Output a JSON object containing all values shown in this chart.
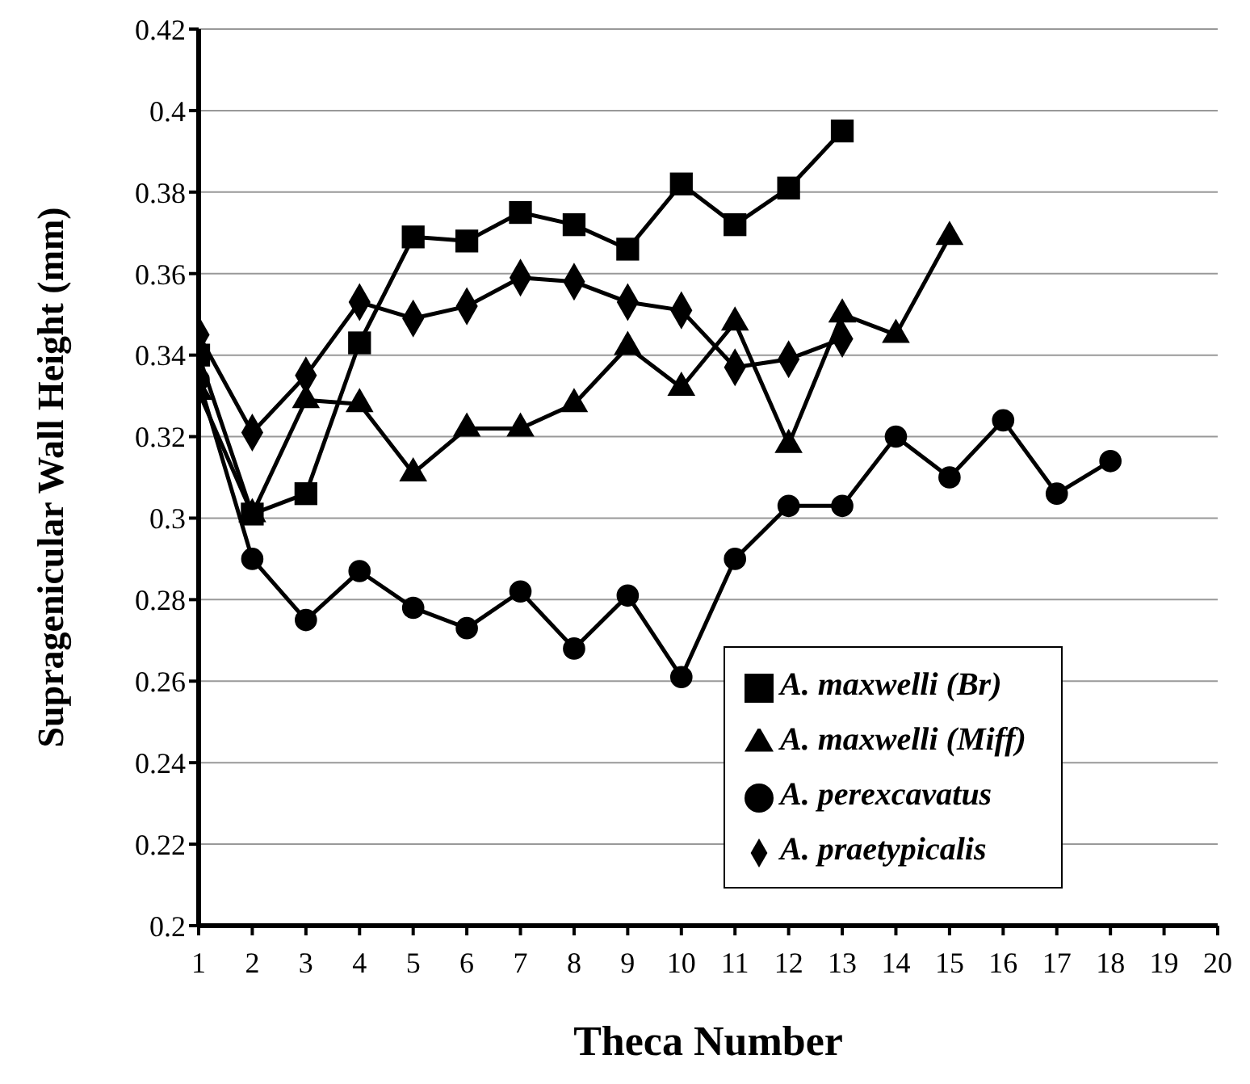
{
  "chart_data": {
    "type": "line",
    "xlabel": "Theca Number",
    "ylabel": "Supragenicular Wall Height (mm)",
    "xlim": [
      1,
      20
    ],
    "xticks": [
      1,
      2,
      3,
      4,
      5,
      6,
      7,
      8,
      9,
      10,
      11,
      12,
      13,
      14,
      15,
      16,
      17,
      18,
      19,
      20
    ],
    "ylim": [
      0.2,
      0.42
    ],
    "yticks": [
      0.2,
      0.22,
      0.24,
      0.26,
      0.28,
      0.3,
      0.32,
      0.34,
      0.36,
      0.38,
      0.4,
      0.42
    ],
    "grid": "y",
    "legend": "bottom right",
    "line_style": "solid",
    "series": [
      {
        "name": "A. praetypicalis",
        "color": "#000000",
        "marker": "diamond",
        "x": [
          1,
          2,
          3,
          4,
          5,
          6,
          7,
          8,
          9,
          10,
          11,
          12,
          13
        ],
        "values": [
          0.345,
          0.321,
          0.335,
          0.353,
          0.349,
          0.352,
          0.359,
          0.358,
          0.353,
          0.351,
          0.337,
          0.339,
          0.344
        ]
      },
      {
        "name": "A. perexcavatus",
        "color": "#000000",
        "marker": "circle",
        "x": [
          1,
          2,
          3,
          4,
          5,
          6,
          7,
          8,
          9,
          10,
          11,
          12,
          13,
          14,
          15,
          16,
          17,
          18
        ],
        "values": [
          0.334,
          0.29,
          0.275,
          0.287,
          0.278,
          0.273,
          0.282,
          0.268,
          0.281,
          0.261,
          0.29,
          0.303,
          0.303,
          0.32,
          0.31,
          0.324,
          0.306,
          0.314
        ]
      },
      {
        "name": "A. maxwelli (Miff)",
        "color": "#000000",
        "marker": "triangle",
        "x": [
          1,
          2,
          3,
          4,
          5,
          6,
          7,
          8,
          9,
          10,
          11,
          12,
          13,
          14,
          15
        ],
        "values": [
          0.331,
          0.301,
          0.329,
          0.328,
          0.311,
          0.322,
          0.322,
          0.328,
          0.342,
          0.332,
          0.348,
          0.318,
          0.35,
          0.345,
          0.369
        ]
      },
      {
        "name": "A. maxwelli (Br)",
        "color": "#000000",
        "marker": "square",
        "x": [
          1,
          2,
          3,
          4,
          5,
          6,
          7,
          8,
          9,
          10,
          11,
          12,
          13
        ],
        "values": [
          0.34,
          0.301,
          0.306,
          0.343,
          0.369,
          0.368,
          0.375,
          0.372,
          0.366,
          0.382,
          0.372,
          0.381,
          0.395
        ]
      }
    ]
  }
}
